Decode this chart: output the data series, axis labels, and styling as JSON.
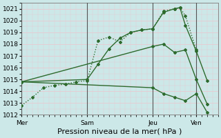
{
  "background_color": "#cce8e8",
  "grid_color_major": "#e8c8d0",
  "grid_color_minor": "#e8c8d0",
  "line_color": "#2d6a2d",
  "ylim": [
    1012,
    1021.5
  ],
  "yticks": [
    1012,
    1013,
    1014,
    1015,
    1016,
    1017,
    1018,
    1019,
    1020,
    1021
  ],
  "xlabel": "Pression niveau de la mer( hPa )",
  "xlabel_fontsize": 8,
  "tick_fontsize": 6.5,
  "day_labels": [
    "Mer",
    "Sam",
    "Jeu",
    "Ven"
  ],
  "day_positions": [
    0,
    36,
    72,
    96
  ],
  "xlim": [
    0,
    108
  ],
  "vline_positions": [
    0,
    36,
    72,
    96
  ],
  "line1_x": [
    0,
    6,
    12,
    18,
    24,
    30,
    36,
    42,
    48,
    54,
    60,
    66,
    72,
    78,
    84,
    87,
    90,
    96
  ],
  "line1_y": [
    1012.8,
    1013.5,
    1014.3,
    1014.5,
    1014.6,
    1014.8,
    1014.9,
    1018.3,
    1018.6,
    1018.2,
    1019.0,
    1019.2,
    1019.3,
    1020.8,
    1021.0,
    1021.1,
    1020.4,
    1017.5
  ],
  "line1_style": "dotted",
  "line2_x": [
    0,
    36,
    42,
    48,
    54,
    60,
    66,
    72,
    78,
    84,
    87,
    90,
    96,
    102
  ],
  "line2_y": [
    1014.8,
    1015.0,
    1016.3,
    1017.6,
    1018.5,
    1019.0,
    1019.2,
    1019.3,
    1020.7,
    1021.0,
    1021.1,
    1019.6,
    1017.4,
    1014.9
  ],
  "line2_style": "solid",
  "line3_x": [
    0,
    72,
    78,
    84,
    90,
    96,
    102
  ],
  "line3_y": [
    1014.8,
    1017.8,
    1018.0,
    1017.3,
    1017.5,
    1015.0,
    1012.9
  ],
  "line3_style": "solid",
  "line4_x": [
    0,
    72,
    78,
    84,
    90,
    96,
    102
  ],
  "line4_y": [
    1014.8,
    1014.3,
    1013.8,
    1013.5,
    1013.2,
    1013.8,
    1012.2
  ],
  "line4_style": "solid"
}
